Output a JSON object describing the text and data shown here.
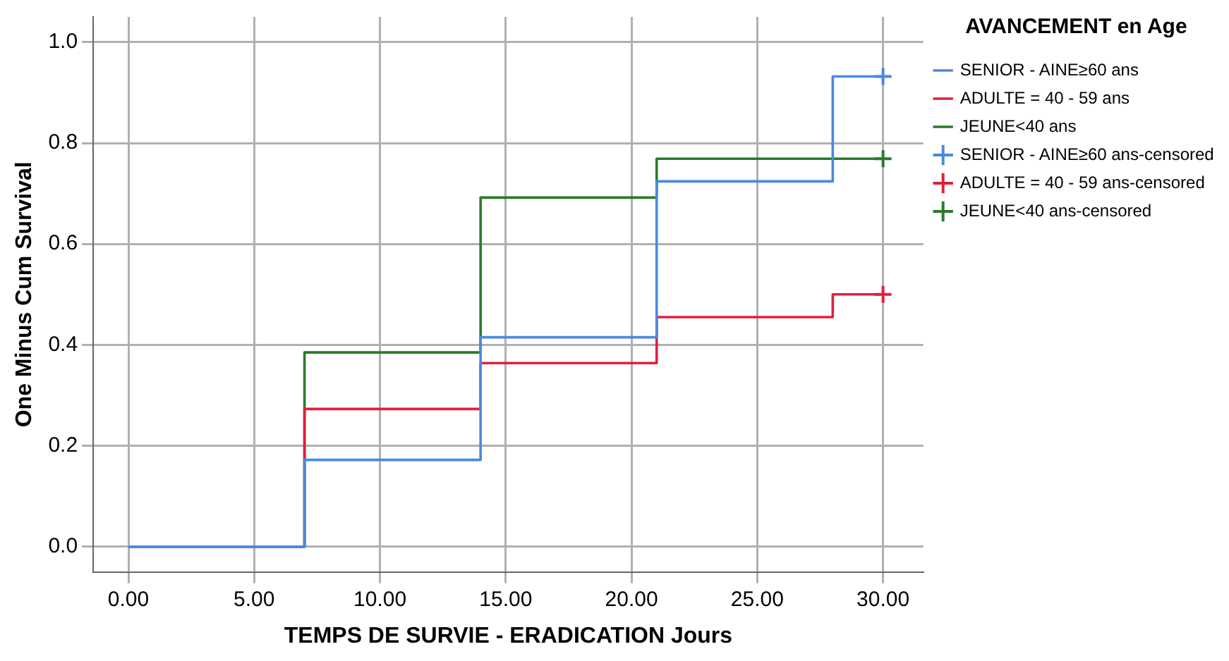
{
  "chart_data": {
    "type": "step",
    "xlabel": "TEMPS DE SURVIE - ERADICATION Jours",
    "ylabel": "One Minus Cum Survival",
    "legend_title": "AVANCEMENT en Age",
    "xlim": [
      -1.4,
      31.6
    ],
    "ylim": [
      -0.05,
      1.05
    ],
    "xticks": [
      {
        "value": 0,
        "label": "0.00"
      },
      {
        "value": 5,
        "label": "5.00"
      },
      {
        "value": 10,
        "label": "10.00"
      },
      {
        "value": 15,
        "label": "15.00"
      },
      {
        "value": 20,
        "label": "20.00"
      },
      {
        "value": 25,
        "label": "25.00"
      },
      {
        "value": 30,
        "label": "30.00"
      }
    ],
    "yticks": [
      {
        "value": 0,
        "label": "0.0"
      },
      {
        "value": 0.2,
        "label": "0.2"
      },
      {
        "value": 0.4,
        "label": "0.4"
      },
      {
        "value": 0.6,
        "label": "0.6"
      },
      {
        "value": 0.8,
        "label": "0.8"
      },
      {
        "value": 1,
        "label": "1.0"
      }
    ],
    "grid": true,
    "legend": "right",
    "series": [
      {
        "name": "SENIOR - AINE≥60 ans",
        "color": "#4a8ae0",
        "x": [
          0,
          7,
          14,
          21,
          28,
          30
        ],
        "values": [
          0,
          0.172,
          0.415,
          0.724,
          0.932,
          0.932
        ]
      },
      {
        "name": "ADULTE = 40 - 59 ans",
        "color": "#e0203c",
        "x": [
          0,
          7,
          14,
          21,
          28,
          30
        ],
        "values": [
          0,
          0.273,
          0.364,
          0.455,
          0.5,
          0.5
        ]
      },
      {
        "name": "JEUNE<40 ans",
        "color": "#2a7a2a",
        "x": [
          0,
          7,
          14,
          21,
          30
        ],
        "values": [
          0,
          0.385,
          0.692,
          0.769,
          0.769
        ]
      },
      {
        "name": "SENIOR - AINE≥60 ans-censored",
        "type": "scatter",
        "marker": "cross",
        "color": "#4a8ae0",
        "x": [
          30
        ],
        "values": [
          0.932
        ]
      },
      {
        "name": "ADULTE = 40 - 59 ans-censored",
        "type": "scatter",
        "marker": "cross",
        "color": "#e0203c",
        "x": [
          30
        ],
        "values": [
          0.5
        ]
      },
      {
        "name": "JEUNE<40 ans-censored",
        "type": "scatter",
        "marker": "cross",
        "color": "#2a7a2a",
        "x": [
          30
        ],
        "values": [
          0.769
        ]
      }
    ]
  }
}
